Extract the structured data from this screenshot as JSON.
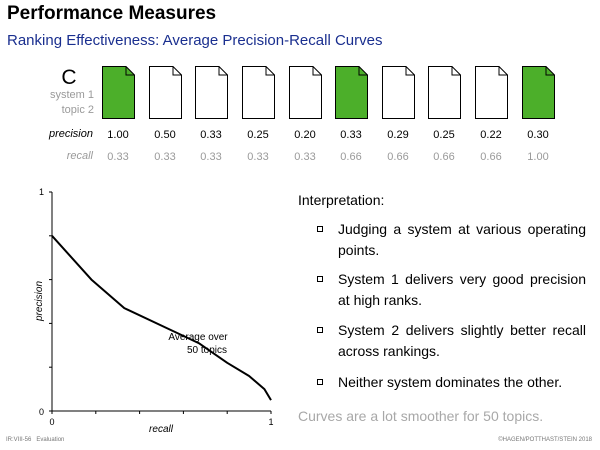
{
  "header": {
    "title": "Performance Measures",
    "subtitle": "Ranking Effectiveness: Average Precision-Recall Curves"
  },
  "ranking": {
    "system_letter": "C",
    "system_label": "system 1",
    "topic_label": "topic 2",
    "precision_label": "precision",
    "recall_label": "recall",
    "relevant_color": "#4caf2a",
    "documents": [
      {
        "relevant": true,
        "precision": "1.00",
        "recall": "0.33"
      },
      {
        "relevant": false,
        "precision": "0.50",
        "recall": "0.33"
      },
      {
        "relevant": false,
        "precision": "0.33",
        "recall": "0.33"
      },
      {
        "relevant": false,
        "precision": "0.25",
        "recall": "0.33"
      },
      {
        "relevant": false,
        "precision": "0.20",
        "recall": "0.33"
      },
      {
        "relevant": true,
        "precision": "0.33",
        "recall": "0.66"
      },
      {
        "relevant": false,
        "precision": "0.29",
        "recall": "0.66"
      },
      {
        "relevant": false,
        "precision": "0.25",
        "recall": "0.66"
      },
      {
        "relevant": false,
        "precision": "0.22",
        "recall": "0.66"
      },
      {
        "relevant": true,
        "precision": "0.30",
        "recall": "1.00"
      }
    ]
  },
  "chart_data": {
    "type": "line",
    "xlabel": "recall",
    "ylabel": "precision",
    "xlim": [
      0,
      1
    ],
    "ylim": [
      0,
      1
    ],
    "x_tick_labels": [
      "0",
      "1"
    ],
    "y_tick_labels": [
      "0",
      "1"
    ],
    "grid": false,
    "annotation": [
      "Average over",
      "50 topics"
    ],
    "series": [
      {
        "x": [
          0,
          0.18,
          0.33,
          0.5,
          0.67,
          0.8,
          0.9,
          0.97,
          1.0
        ],
        "y": [
          0.8,
          0.6,
          0.47,
          0.39,
          0.31,
          0.22,
          0.16,
          0.1,
          0.05
        ]
      }
    ]
  },
  "interpretation": {
    "heading": "Interpretation:",
    "bullets": [
      "Judging a system at various operat­ing points.",
      "System 1 delivers very good preci­sion at high ranks.",
      "System 2 delivers slightly better re­call across rankings.",
      "Neither system dominates the other."
    ],
    "note": "Curves are a lot smoother for 50 topics."
  },
  "footer": {
    "left": "IR:VIII-56   Evaluation",
    "right": "©HAGEN/POTTHAST/STEIN 2018"
  }
}
